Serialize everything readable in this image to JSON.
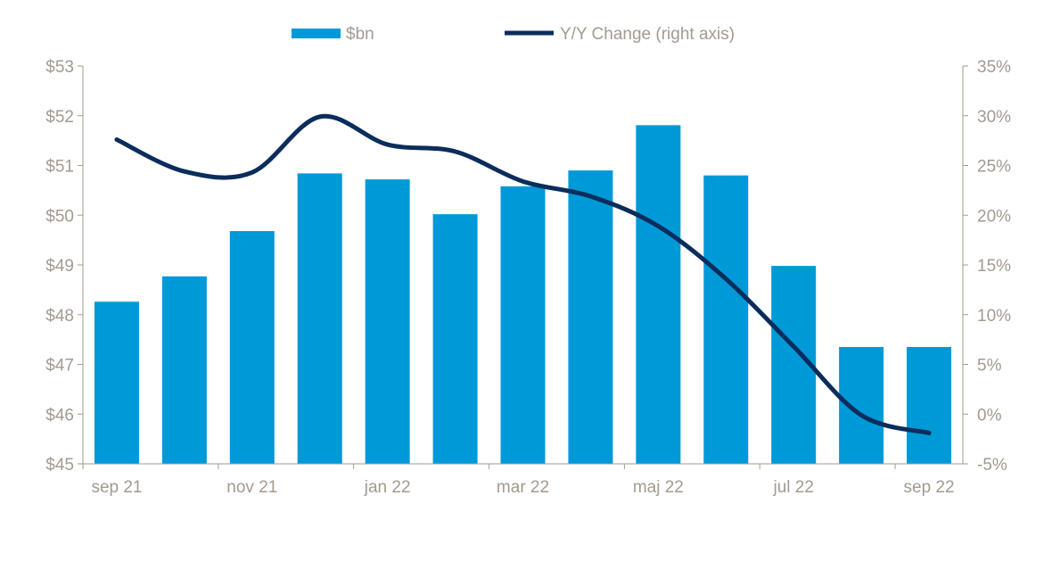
{
  "chart_data": {
    "type": "bar",
    "categories": [
      "sep 21",
      "",
      "nov 21",
      "",
      "jan 22",
      "",
      "mar 22",
      "",
      "maj 22",
      "",
      "jul 22",
      "",
      "sep 22"
    ],
    "series": [
      {
        "name": "$bn",
        "type": "bar",
        "axis": "left",
        "color": "#0099D8",
        "values": [
          48.26,
          48.77,
          49.68,
          50.84,
          50.72,
          50.02,
          50.58,
          50.9,
          51.81,
          50.8,
          48.98,
          47.35,
          47.35
        ]
      },
      {
        "name": "Y/Y Change (right axis)",
        "type": "line",
        "axis": "right",
        "color": "#0B2D5B",
        "values": [
          27.6,
          24.4,
          24.3,
          29.9,
          27.1,
          26.4,
          23.4,
          21.9,
          18.9,
          13.6,
          6.8,
          -0.1,
          -1.9
        ]
      }
    ],
    "left_axis": {
      "min": 45,
      "max": 53,
      "step": 1,
      "tick_labels": [
        "$45",
        "$46",
        "$47",
        "$48",
        "$49",
        "$50",
        "$51",
        "$52",
        "$53"
      ]
    },
    "right_axis": {
      "min": -5,
      "max": 35,
      "step": 5,
      "tick_labels": [
        "-5%",
        "0%",
        "5%",
        "10%",
        "15%",
        "20%",
        "25%",
        "30%",
        "35%"
      ]
    },
    "legend_placement": "top-center",
    "grid": false,
    "text_color": "#A39A8F"
  }
}
